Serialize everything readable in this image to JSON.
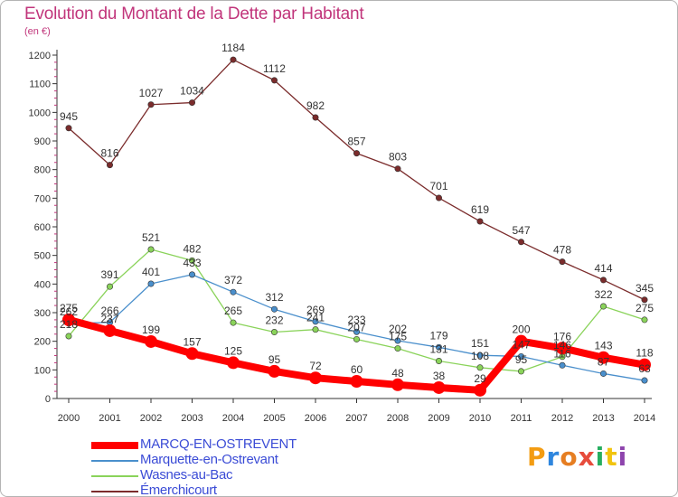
{
  "header": {
    "title": "Evolution du Montant de la Dette par Habitant",
    "subtitle": "(en €)"
  },
  "brand": {
    "text": "Proxiti",
    "colors": [
      "#f39c12",
      "#2e86de",
      "#e67e22",
      "#e74c3c",
      "#27ae60",
      "#f1c40f",
      "#8e44ad"
    ]
  },
  "chart_data": {
    "type": "line",
    "x": [
      "2000",
      "2001",
      "2002",
      "2003",
      "2004",
      "2005",
      "2006",
      "2007",
      "2008",
      "2009",
      "2010",
      "2011",
      "2012",
      "2013",
      "2014"
    ],
    "ylim": [
      0,
      1200
    ],
    "yticks": [
      0,
      100,
      200,
      300,
      400,
      500,
      600,
      700,
      800,
      900,
      1000,
      1100,
      1200
    ],
    "grid": false,
    "legend_position": "bottom-left",
    "series": [
      {
        "name": "Émerchicourt",
        "color": "#7b2c2c",
        "values": [
          945,
          816,
          1027,
          1034,
          1184,
          1112,
          982,
          857,
          803,
          701,
          619,
          547,
          478,
          414,
          345
        ],
        "labels": [
          "945",
          "816",
          "1027",
          "1034",
          "1184",
          "1112",
          "982",
          "857",
          "803",
          "701",
          "619",
          "547",
          "478",
          "414",
          "345"
        ]
      },
      {
        "name": "Wasnes-au-Bac",
        "color": "#8ad35a",
        "values": [
          218,
          391,
          521,
          482,
          265,
          232,
          241,
          207,
          175,
          131,
          108,
          95,
          146,
          322,
          275
        ],
        "labels": [
          "218",
          "391",
          "521",
          "482",
          "265",
          "232",
          "241",
          "207",
          "175",
          "131",
          "108",
          "95",
          "146",
          "322",
          "275"
        ]
      },
      {
        "name": "Marquette-en-Ostrevant",
        "color": "#4a8fcc",
        "values": [
          262,
          266,
          401,
          433,
          372,
          312,
          269,
          233,
          202,
          179,
          151,
          147,
          116,
          87,
          63
        ],
        "labels": [
          "262",
          "266",
          "401",
          "433",
          "372",
          "312",
          "269",
          "233",
          "202",
          "179",
          "151",
          "147",
          "116",
          "87",
          "63"
        ]
      },
      {
        "name": "MARCQ-EN-OSTREVENT",
        "color": "#ff0000",
        "values": [
          275,
          237,
          199,
          157,
          125,
          95,
          72,
          60,
          48,
          38,
          29,
          200,
          176,
          143,
          118
        ],
        "labels": [
          "275",
          "237",
          "199",
          "157",
          "125",
          "95",
          "72",
          "60",
          "48",
          "38",
          "29",
          "200",
          "176",
          "143",
          "118"
        ]
      }
    ],
    "legend_order": [
      "MARCQ-EN-OSTREVENT",
      "Marquette-en-Ostrevant",
      "Wasnes-au-Bac",
      "Émerchicourt"
    ]
  }
}
